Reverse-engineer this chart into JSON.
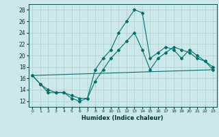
{
  "xlabel": "Humidex (Indice chaleur)",
  "background_color": "#cce8e8",
  "grid_color": "#aacfcf",
  "line_color": "#007070",
  "xlim": [
    -0.5,
    23.5
  ],
  "ylim": [
    11.0,
    29.0
  ],
  "yticks": [
    12,
    14,
    16,
    18,
    20,
    22,
    24,
    26,
    28
  ],
  "xticks": [
    0,
    1,
    2,
    3,
    4,
    5,
    6,
    7,
    8,
    9,
    10,
    11,
    12,
    13,
    14,
    15,
    16,
    17,
    18,
    19,
    20,
    21,
    22,
    23
  ],
  "series1_x": [
    0,
    1,
    2,
    3,
    4,
    5,
    6,
    7,
    8,
    9,
    10,
    11,
    12,
    13,
    14,
    15,
    16,
    17,
    18,
    19,
    20,
    21,
    22,
    23
  ],
  "series1_y": [
    16.5,
    15.0,
    13.5,
    13.5,
    13.5,
    12.5,
    12.0,
    12.5,
    17.5,
    19.5,
    21.0,
    24.0,
    26.0,
    28.0,
    27.5,
    19.5,
    20.5,
    21.5,
    21.0,
    19.5,
    21.0,
    20.0,
    19.0,
    17.5
  ],
  "series2_x": [
    0,
    1,
    2,
    3,
    4,
    5,
    6,
    7,
    8,
    9,
    10,
    11,
    12,
    13,
    14,
    15,
    16,
    17,
    18,
    19,
    20,
    21,
    22,
    23
  ],
  "series2_y": [
    16.5,
    15.0,
    14.0,
    13.5,
    13.5,
    13.0,
    12.5,
    12.5,
    15.5,
    17.5,
    19.5,
    21.0,
    22.5,
    24.0,
    21.0,
    17.5,
    19.5,
    20.5,
    21.5,
    21.0,
    20.5,
    19.5,
    19.0,
    18.0
  ],
  "series3_x": [
    0,
    23
  ],
  "series3_y": [
    16.5,
    17.5
  ]
}
